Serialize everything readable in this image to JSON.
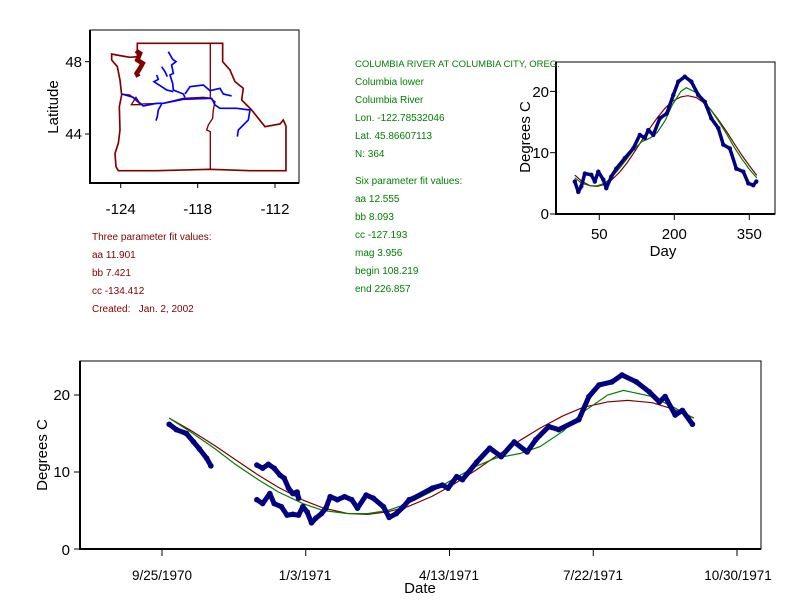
{
  "colors": {
    "three_param_fit": "#800000",
    "six_param_fit": "#008000",
    "observed": "#000080",
    "rivers": "#0000ff",
    "boundaries": "#800000"
  },
  "station": {
    "title": "COLUMBIA RIVER AT COLUMBIA CITY, OREG.",
    "lines": [
      "Columbia lower",
      "Columbia River",
      "Lon. -122.78532046",
      "Lat. 45.86607113",
      "N: 364"
    ],
    "six_param_heading": "Six parameter fit values:",
    "six_param": [
      "aa 12.555",
      "bb 8.093",
      "cc -127.193",
      "mag 3.956",
      "begin 108.219",
      "end 226.857"
    ]
  },
  "three_param": {
    "heading": "Three parameter fit values:",
    "values": [
      "aa 11.901",
      "bb 7.421",
      "cc -134.412"
    ],
    "created": "Created:   Jan. 2, 2002"
  },
  "chart_data": [
    {
      "type": "map",
      "ylabel": "Latitude",
      "xticks": [
        -124,
        -118,
        -112
      ],
      "yticks": [
        48,
        44
      ],
      "xlim": [
        -126.4,
        -110.1
      ],
      "ylim": [
        41.3,
        49.75
      ],
      "site_marker": {
        "lon": -122.785,
        "lat": 45.866,
        "shape": "triangle"
      },
      "x_tick_labels": [
        "-124",
        "-118",
        "-112"
      ],
      "y_tick_labels": [
        "48",
        "44"
      ]
    },
    {
      "type": "scatter",
      "xlabel": "Day",
      "ylabel": "Degrees C",
      "xlim": [
        -35,
        402
      ],
      "ylim": [
        0,
        25
      ],
      "xticks": [
        50,
        200,
        350
      ],
      "yticks": [
        0,
        10,
        20
      ],
      "x_tick_labels": [
        "50",
        "200",
        "350"
      ],
      "y_tick_labels": [
        "0",
        "10",
        "20"
      ],
      "observed": [
        [
          1,
          5.3
        ],
        [
          8,
          3.6
        ],
        [
          14,
          4.5
        ],
        [
          21,
          6.6
        ],
        [
          34,
          6.4
        ],
        [
          41,
          5.3
        ],
        [
          48,
          6.9
        ],
        [
          58,
          5.6
        ],
        [
          64,
          4.2
        ],
        [
          74,
          6.1
        ],
        [
          84,
          7.4
        ],
        [
          101,
          9.1
        ],
        [
          118,
          10.7
        ],
        [
          131,
          12.9
        ],
        [
          141,
          12.4
        ],
        [
          148,
          13.7
        ],
        [
          158,
          12.9
        ],
        [
          171,
          15.6
        ],
        [
          185,
          16.4
        ],
        [
          198,
          19.4
        ],
        [
          208,
          21.6
        ],
        [
          221,
          22.4
        ],
        [
          234,
          21.6
        ],
        [
          248,
          19.4
        ],
        [
          261,
          18.3
        ],
        [
          274,
          15.6
        ],
        [
          288,
          14.0
        ],
        [
          298,
          11.3
        ],
        [
          311,
          10.7
        ],
        [
          324,
          7.4
        ],
        [
          338,
          6.9
        ],
        [
          348,
          5.0
        ],
        [
          358,
          4.7
        ],
        [
          364,
          5.3
        ]
      ],
      "three_param_fit": [
        [
          1,
          6.35
        ],
        [
          15,
          5.33
        ],
        [
          32,
          4.61
        ],
        [
          46,
          4.5
        ],
        [
          60,
          4.83
        ],
        [
          74,
          5.5
        ],
        [
          91,
          6.85
        ],
        [
          105,
          8.3
        ],
        [
          121,
          10.2
        ],
        [
          135,
          12.0
        ],
        [
          152,
          14.1
        ],
        [
          166,
          15.7
        ],
        [
          182,
          17.3
        ],
        [
          196,
          18.4
        ],
        [
          213,
          19.1
        ],
        [
          227,
          19.3
        ],
        [
          244,
          19.0
        ],
        [
          258,
          18.2
        ],
        [
          273,
          17.0
        ],
        [
          288,
          15.4
        ],
        [
          305,
          13.4
        ],
        [
          319,
          11.6
        ],
        [
          335,
          9.6
        ],
        [
          349,
          8.0
        ],
        [
          365,
          6.3
        ]
      ],
      "six_param_fit": [
        [
          1,
          5.9
        ],
        [
          15,
          5.0
        ],
        [
          32,
          4.6
        ],
        [
          46,
          4.6
        ],
        [
          60,
          5.0
        ],
        [
          74,
          5.9
        ],
        [
          91,
          7.5
        ],
        [
          105,
          9.0
        ],
        [
          121,
          10.7
        ],
        [
          135,
          11.8
        ],
        [
          152,
          12.4
        ],
        [
          166,
          13.3
        ],
        [
          182,
          15.3
        ],
        [
          196,
          17.8
        ],
        [
          213,
          20.0
        ],
        [
          224,
          20.6
        ],
        [
          244,
          19.8
        ],
        [
          258,
          18.5
        ],
        [
          273,
          17.0
        ],
        [
          288,
          15.2
        ],
        [
          305,
          13.0
        ],
        [
          319,
          11.0
        ],
        [
          335,
          9.0
        ],
        [
          349,
          7.4
        ],
        [
          365,
          5.9
        ]
      ]
    },
    {
      "type": "scatter",
      "xlabel": "Date",
      "ylabel": "Degrees C",
      "xlim": [
        "1970-08-15",
        "1971-11-17"
      ],
      "ylim": [
        0,
        24.5
      ],
      "xticks": [
        "1970-09-25",
        "1971-01-03",
        "1971-04-13",
        "1971-07-22",
        "1971-10-30"
      ],
      "x_tick_labels": [
        "9/25/1970",
        "1/3/1971",
        "4/13/1971",
        "7/22/1971",
        "10/30/1971"
      ],
      "yticks": [
        0,
        10,
        20
      ],
      "y_tick_labels": [
        "0",
        "10",
        "20"
      ],
      "observed_segments": [
        [
          [
            "1970-09-30",
            16.2
          ],
          [
            "1970-10-05",
            15.5
          ],
          [
            "1970-10-12",
            15.0
          ],
          [
            "1970-10-17",
            13.9
          ],
          [
            "1970-10-21",
            13.0
          ],
          [
            "1970-10-26",
            11.8
          ],
          [
            "1970-10-29",
            10.8
          ]
        ],
        [
          [
            "1970-11-30",
            10.9
          ],
          [
            "1970-12-04",
            10.5
          ],
          [
            "1970-12-08",
            11.0
          ],
          [
            "1970-12-12",
            10.5
          ],
          [
            "1970-12-16",
            9.6
          ],
          [
            "1970-12-19",
            9.2
          ],
          [
            "1970-12-22",
            7.9
          ],
          [
            "1970-12-25",
            7.2
          ],
          [
            "1970-12-28",
            7.4
          ],
          [
            "1970-12-29",
            6.6
          ]
        ],
        [
          [
            "1970-11-30",
            6.4
          ],
          [
            "1970-12-04",
            5.9
          ],
          [
            "1970-12-09",
            7.2
          ],
          [
            "1970-12-12",
            5.9
          ],
          [
            "1970-12-17",
            5.5
          ],
          [
            "1970-12-21",
            4.4
          ],
          [
            "1970-12-25",
            4.5
          ],
          [
            "1970-12-29",
            4.4
          ],
          [
            "1971-01-01",
            5.5
          ],
          [
            "1971-01-04",
            4.8
          ],
          [
            "1971-01-07",
            3.4
          ],
          [
            "1971-01-10",
            4.0
          ],
          [
            "1971-01-14",
            4.6
          ],
          [
            "1971-01-17",
            5.3
          ],
          [
            "1971-01-20",
            6.8
          ],
          [
            "1971-01-25",
            6.4
          ],
          [
            "1971-01-30",
            6.8
          ],
          [
            "1971-02-04",
            6.4
          ],
          [
            "1971-02-08",
            5.3
          ],
          [
            "1971-02-14",
            7.0
          ],
          [
            "1971-02-19",
            6.6
          ],
          [
            "1971-02-26",
            5.5
          ],
          [
            "1971-03-02",
            4.1
          ],
          [
            "1971-03-07",
            4.6
          ],
          [
            "1971-03-12",
            5.5
          ],
          [
            "1971-03-16",
            6.4
          ],
          [
            "1971-03-19",
            6.6
          ],
          [
            "1971-04-01",
            7.9
          ],
          [
            "1971-04-08",
            8.3
          ],
          [
            "1971-04-12",
            7.9
          ],
          [
            "1971-04-18",
            9.4
          ],
          [
            "1971-04-22",
            9.0
          ],
          [
            "1971-05-02",
            11.3
          ],
          [
            "1971-05-11",
            13.1
          ],
          [
            "1971-05-19",
            12.0
          ],
          [
            "1971-05-28",
            13.9
          ],
          [
            "1971-06-06",
            12.6
          ],
          [
            "1971-06-12",
            14.2
          ],
          [
            "1971-06-21",
            15.9
          ],
          [
            "1971-06-28",
            15.5
          ],
          [
            "1971-07-12",
            16.8
          ],
          [
            "1971-07-19",
            19.8
          ],
          [
            "1971-07-26",
            21.3
          ],
          [
            "1971-08-04",
            21.7
          ],
          [
            "1971-08-11",
            22.6
          ],
          [
            "1971-08-21",
            21.7
          ],
          [
            "1971-08-30",
            20.4
          ],
          [
            "1971-09-06",
            19.1
          ],
          [
            "1971-09-10",
            19.8
          ],
          [
            "1971-09-17",
            17.4
          ],
          [
            "1971-09-22",
            18.0
          ],
          [
            "1971-09-29",
            16.2
          ]
        ]
      ],
      "three_param_fit": [
        [
          "1970-09-30",
          17.0
        ],
        [
          "1970-10-15",
          15.4
        ],
        [
          "1970-11-01",
          13.4
        ],
        [
          "1970-11-15",
          11.6
        ],
        [
          "1970-12-01",
          9.6
        ],
        [
          "1970-12-15",
          8.0
        ],
        [
          "1971-01-01",
          6.35
        ],
        [
          "1971-01-15",
          5.33
        ],
        [
          "1971-02-01",
          4.61
        ],
        [
          "1971-02-15",
          4.5
        ],
        [
          "1971-03-01",
          4.83
        ],
        [
          "1971-03-15",
          5.5
        ],
        [
          "1971-04-01",
          6.85
        ],
        [
          "1971-04-15",
          8.3
        ],
        [
          "1971-05-01",
          10.2
        ],
        [
          "1971-05-15",
          12.0
        ],
        [
          "1971-06-01",
          14.1
        ],
        [
          "1971-06-15",
          15.7
        ],
        [
          "1971-07-01",
          17.3
        ],
        [
          "1971-07-15",
          18.4
        ],
        [
          "1971-08-01",
          19.1
        ],
        [
          "1971-08-15",
          19.3
        ],
        [
          "1971-09-01",
          19.0
        ],
        [
          "1971-09-15",
          18.2
        ],
        [
          "1971-09-30",
          17.0
        ]
      ],
      "six_param_fit": [
        [
          "1970-09-30",
          17.0
        ],
        [
          "1970-10-15",
          15.2
        ],
        [
          "1970-11-01",
          13.0
        ],
        [
          "1970-11-15",
          11.0
        ],
        [
          "1970-12-01",
          9.0
        ],
        [
          "1970-12-15",
          7.4
        ],
        [
          "1971-01-01",
          5.9
        ],
        [
          "1971-01-15",
          5.0
        ],
        [
          "1971-02-01",
          4.6
        ],
        [
          "1971-02-15",
          4.6
        ],
        [
          "1971-03-01",
          5.0
        ],
        [
          "1971-03-15",
          5.9
        ],
        [
          "1971-04-01",
          7.5
        ],
        [
          "1971-04-15",
          9.0
        ],
        [
          "1971-05-01",
          10.7
        ],
        [
          "1971-05-15",
          11.8
        ],
        [
          "1971-06-01",
          12.4
        ],
        [
          "1971-06-15",
          13.3
        ],
        [
          "1971-07-01",
          15.3
        ],
        [
          "1971-07-15",
          17.8
        ],
        [
          "1971-08-01",
          20.0
        ],
        [
          "1971-08-12",
          20.6
        ],
        [
          "1971-09-01",
          19.8
        ],
        [
          "1971-09-15",
          18.5
        ],
        [
          "1971-09-30",
          17.0
        ]
      ]
    }
  ]
}
